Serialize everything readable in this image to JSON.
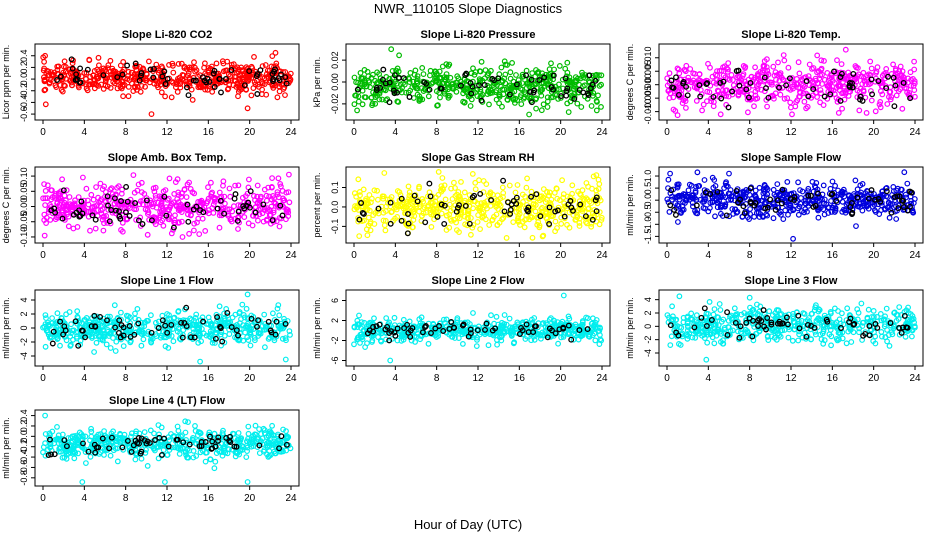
{
  "page": {
    "title": "NWR_110105  Slope Diagnostics",
    "xlabel": "Hour of Day (UTC)"
  },
  "chart_data": [
    {
      "type": "scatter",
      "title": "Slope Li-820 CO2",
      "ylabel": "Licor ppm per min.",
      "color": "#ff0000",
      "xlim": [
        0,
        24
      ],
      "xticks": [
        0,
        4,
        8,
        12,
        16,
        20,
        24
      ],
      "ylim": [
        -0.65,
        0.55
      ],
      "yticks": [
        -0.6,
        -0.4,
        -0.2,
        0.0,
        0.2,
        0.4
      ],
      "ytick_labels": [
        "-0.6",
        "-0.4",
        "-0.2",
        "0.0",
        "0.2",
        "0.4"
      ],
      "spread": 0.13,
      "bias": 0.02,
      "outliers": [
        {
          "x": 10.5,
          "y": -0.6
        },
        {
          "x": 19.8,
          "y": -0.5
        },
        {
          "x": 22.5,
          "y": 0.45
        },
        {
          "x": 0.2,
          "y": 0.4
        }
      ]
    },
    {
      "type": "scatter",
      "title": "Slope Li-820 Pressure",
      "ylabel": "kPa per min.",
      "color": "#00bb00",
      "xlim": [
        0,
        24
      ],
      "xticks": [
        0,
        4,
        8,
        12,
        16,
        20,
        24
      ],
      "ylim": [
        -0.032,
        0.032
      ],
      "yticks": [
        -0.02,
        0.0,
        0.02
      ],
      "ytick_labels": [
        "-0.02",
        "0.00",
        "0.02"
      ],
      "spread": 0.009,
      "bias": -0.004,
      "outliers": [
        {
          "x": 3.6,
          "y": 0.03
        },
        {
          "x": 0.3,
          "y": -0.026
        },
        {
          "x": 23.5,
          "y": -0.026
        }
      ]
    },
    {
      "type": "scatter",
      "title": "Slope Li-820 Temp.",
      "ylabel": "degrees C per min.",
      "color": "#ff00ff",
      "xlim": [
        0,
        24
      ],
      "xticks": [
        0,
        4,
        8,
        12,
        16,
        20,
        24
      ],
      "ylim": [
        -0.012,
        0.014
      ],
      "yticks": [
        -0.01,
        -0.005,
        0.0,
        0.005,
        0.01
      ],
      "ytick_labels": [
        "-0.010",
        "-0.005",
        "0.000",
        "0.005",
        "0.010"
      ],
      "spread": 0.004,
      "bias": 0.0,
      "outliers": [
        {
          "x": 17.3,
          "y": 0.013
        },
        {
          "x": 5.2,
          "y": -0.011
        },
        {
          "x": 12.1,
          "y": -0.011
        }
      ]
    },
    {
      "type": "scatter",
      "title": "Slope Amb. Box Temp.",
      "ylabel": "degrees C per min.",
      "color": "#ff00ff",
      "xlim": [
        0,
        24
      ],
      "xticks": [
        0,
        4,
        8,
        12,
        16,
        20,
        24
      ],
      "ylim": [
        -0.11,
        0.12
      ],
      "yticks": [
        -0.1,
        -0.05,
        0.0,
        0.05,
        0.1
      ],
      "ytick_labels": [
        "-0.10",
        "-0.05",
        "0.00",
        "0.05",
        "0.10"
      ],
      "spread": 0.037,
      "bias": 0.0,
      "outliers": [
        {
          "x": 23.8,
          "y": 0.105
        },
        {
          "x": 13.5,
          "y": -0.1
        }
      ]
    },
    {
      "type": "scatter",
      "title": "Slope Gas Stream RH",
      "ylabel": "percent per min.",
      "color": "#ffff00",
      "xlim": [
        0,
        24
      ],
      "xticks": [
        0,
        4,
        8,
        12,
        16,
        20,
        24
      ],
      "ylim": [
        -0.17,
        0.19
      ],
      "yticks": [
        -0.1,
        0.0,
        0.1
      ],
      "ytick_labels": [
        "-0.1",
        "0.0",
        "0.1"
      ],
      "spread": 0.06,
      "bias": 0.0,
      "outliers": [
        {
          "x": 8.2,
          "y": 0.18
        },
        {
          "x": 11.5,
          "y": 0.17
        },
        {
          "x": 0.5,
          "y": -0.15
        }
      ]
    },
    {
      "type": "scatter",
      "title": "Slope Sample Flow",
      "ylabel": "ml/min per min.",
      "color": "#0000dd",
      "xlim": [
        0,
        24
      ],
      "xticks": [
        0,
        4,
        8,
        12,
        16,
        20,
        24
      ],
      "ylim": [
        -1.65,
        1.25
      ],
      "yticks": [
        -1.5,
        -1.0,
        -0.5,
        0.0,
        0.5,
        1.0
      ],
      "ytick_labels": [
        "-1.5",
        "-1.0",
        "-0.5",
        "0.0",
        "0.5",
        "1.0"
      ],
      "spread": 0.35,
      "bias": 0.0,
      "outliers": [
        {
          "x": 12.2,
          "y": -1.6
        },
        {
          "x": 0.3,
          "y": 1.1
        },
        {
          "x": 6.0,
          "y": 1.1
        }
      ]
    },
    {
      "type": "scatter",
      "title": "Slope Line 1 Flow",
      "ylabel": "ml/min per min.",
      "color": "#00eeee",
      "xlim": [
        0,
        24
      ],
      "xticks": [
        0,
        4,
        8,
        12,
        16,
        20,
        24
      ],
      "ylim": [
        -5,
        5
      ],
      "yticks": [
        -4,
        -2,
        0,
        2,
        4
      ],
      "ytick_labels": [
        "-4",
        "-2",
        "0",
        "2",
        "4"
      ],
      "spread": 1.2,
      "bias": 0.0,
      "outliers": [
        {
          "x": 15.2,
          "y": -4.8
        },
        {
          "x": 19.8,
          "y": 4.8
        },
        {
          "x": 23.5,
          "y": -4.5
        }
      ]
    },
    {
      "type": "scatter",
      "title": "Slope Line 2 Flow",
      "ylabel": "ml/min per min.",
      "color": "#00eeee",
      "xlim": [
        0,
        24
      ],
      "xticks": [
        0,
        4,
        8,
        12,
        16,
        20,
        24
      ],
      "ylim": [
        -6.5,
        7.5
      ],
      "yticks": [
        -6,
        -2,
        2,
        6
      ],
      "ytick_labels": [
        "-6",
        "-2",
        "2",
        "6"
      ],
      "spread": 1.1,
      "bias": 0.0,
      "outliers": [
        {
          "x": 20.3,
          "y": 7.0
        },
        {
          "x": 3.5,
          "y": -6.0
        }
      ]
    },
    {
      "type": "scatter",
      "title": "Slope Line 3 Flow",
      "ylabel": "ml/min per min.",
      "color": "#00eeee",
      "xlim": [
        0,
        24
      ],
      "xticks": [
        0,
        4,
        8,
        12,
        16,
        20,
        24
      ],
      "ylim": [
        -5.5,
        5
      ],
      "yticks": [
        -4,
        -2,
        0,
        2,
        4
      ],
      "ytick_labels": [
        "-4",
        "-2",
        "0",
        "2",
        "4"
      ],
      "spread": 1.3,
      "bias": 0.2,
      "outliers": [
        {
          "x": 3.8,
          "y": -5.0
        },
        {
          "x": 1.2,
          "y": 4.5
        },
        {
          "x": 8.0,
          "y": 4.3
        }
      ]
    },
    {
      "type": "scatter",
      "title": "Slope Line 4 (LT) Flow",
      "ylabel": "ml/min per min.",
      "color": "#00eeee",
      "xlim": [
        0,
        24
      ],
      "xticks": [
        0,
        4,
        8,
        12,
        16,
        20,
        24
      ],
      "ylim": [
        -0.9,
        0.45
      ],
      "yticks": [
        -0.8,
        -0.6,
        -0.4,
        -0.2,
        0.0,
        0.2,
        0.4
      ],
      "ytick_labels": [
        "-0.8",
        "-0.6",
        "-0.4",
        "-0.2",
        "0.0",
        "0.2",
        "0.4"
      ],
      "spread": 0.14,
      "bias": -0.15,
      "outliers": [
        {
          "x": 3.8,
          "y": -0.88
        },
        {
          "x": 11.8,
          "y": -0.88
        },
        {
          "x": 19.8,
          "y": -0.88
        },
        {
          "x": 0.2,
          "y": 0.4
        }
      ]
    }
  ]
}
